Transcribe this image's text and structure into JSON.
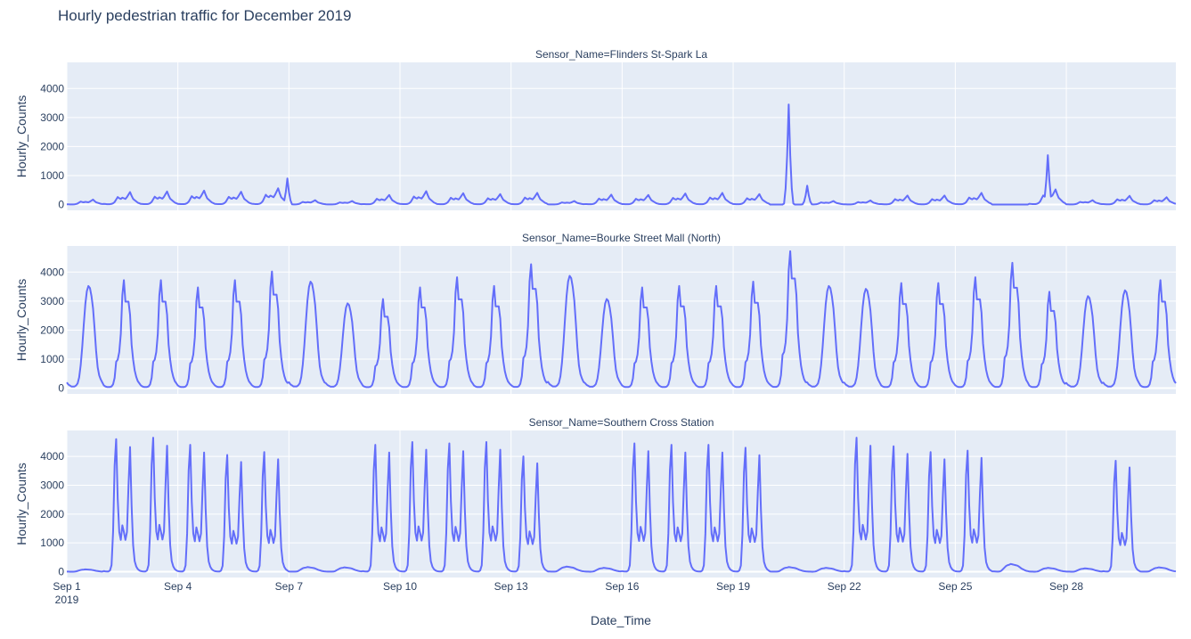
{
  "title": "Hourly pedestrian traffic for December 2019",
  "chart_data": {
    "type": "line",
    "title": "Hourly pedestrian traffic for December 2019",
    "xlabel": "Date_Time",
    "ylabel": "Hourly_Counts",
    "x_range": [
      "2019-09-01",
      "2019-09-30T23:00"
    ],
    "x_ticks": [
      "Sep 1",
      "Sep 4",
      "Sep 7",
      "Sep 10",
      "Sep 13",
      "Sep 16",
      "Sep 19",
      "Sep 22",
      "Sep 25",
      "Sep 28"
    ],
    "x_tick_year": "2019",
    "y_ticks": [
      0,
      1000,
      2000,
      3000,
      4000
    ],
    "ylim": [
      -200,
      4900
    ],
    "line_color": "#636efa",
    "grid": true,
    "panels": [
      {
        "facet_label": "Sensor_Name=Flinders St-Spark La",
        "kind": "flinders",
        "daily_peaks": [
          170,
          430,
          450,
          480,
          440,
          560,
          150,
          120,
          330,
          460,
          390,
          360,
          400,
          120,
          340,
          330,
          380,
          400,
          360,
          3450,
          120,
          140,
          310,
          310,
          400,
          1700,
          520,
          150,
          300,
          250
        ],
        "notable_points": [
          {
            "x": "2019-09-06T23:00",
            "y": 900
          },
          {
            "x": "2019-09-20T12:00",
            "y": 3450
          },
          {
            "x": "2019-09-21T00:00",
            "y": 650
          },
          {
            "x": "2019-09-27T12:00",
            "y": 1700
          }
        ]
      },
      {
        "facet_label": "Sensor_Name=Bourke Street Mall (North)",
        "kind": "bourke",
        "daily_peaks": [
          3500,
          3700,
          3700,
          3450,
          3700,
          4000,
          3650,
          2900,
          3050,
          3450,
          3800,
          3500,
          4250,
          3850,
          3050,
          3450,
          3500,
          3500,
          3650,
          4700,
          3500,
          3400,
          3600,
          3600,
          3800,
          4300,
          3300,
          3150,
          3350,
          3700
        ]
      },
      {
        "facet_label": "Sensor_Name=Southern Cross Station",
        "kind": "southern",
        "daily_peaks": [
          90,
          4600,
          4650,
          4400,
          4050,
          4150,
          180,
          170,
          4400,
          4500,
          4450,
          4500,
          4000,
          200,
          150,
          4450,
          4400,
          4400,
          4300,
          180,
          150,
          4650,
          4350,
          4150,
          4200,
          300,
          150,
          130,
          3850,
          170
        ]
      }
    ]
  }
}
